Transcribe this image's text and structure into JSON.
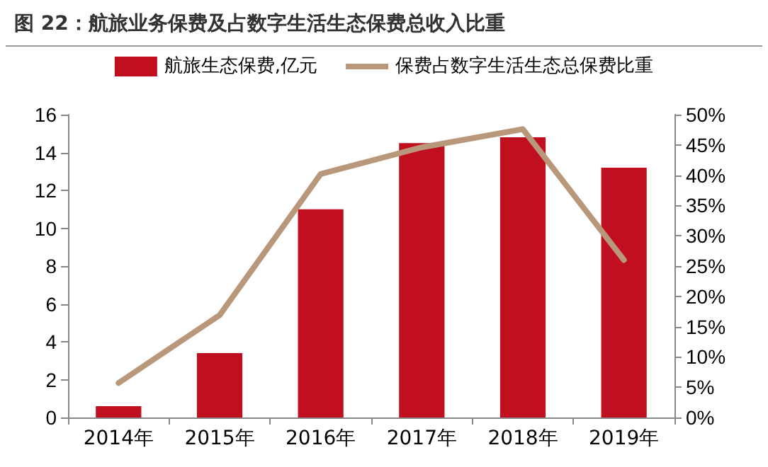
{
  "chart_data": {
    "type": "bar",
    "title": "图 22：航旅业务保费及占数字生活生态保费总收入比重",
    "categories": [
      "2014年",
      "2015年",
      "2016年",
      "2017年",
      "2018年",
      "2019年"
    ],
    "series": [
      {
        "name": "航旅生态保费,亿元",
        "color": "#c00f1e",
        "values": [
          0.6,
          3.4,
          11.0,
          14.5,
          14.8,
          13.2
        ]
      },
      {
        "name": "保费占数字生活生态总保费比重",
        "type": "line",
        "axis": "y2",
        "color": "#b8977a",
        "values": [
          5.7,
          16.9,
          40.2,
          44.6,
          47.6,
          26.0
        ]
      }
    ],
    "ylim": [
      0,
      16
    ],
    "yticks": [
      0,
      2,
      4,
      6,
      8,
      10,
      12,
      14,
      16
    ],
    "y2lim": [
      0,
      50
    ],
    "y2ticks": [
      {
        "value": 0,
        "label": "0%"
      },
      {
        "value": 5,
        "label": "5%"
      },
      {
        "value": 10,
        "label": "10%"
      },
      {
        "value": 15,
        "label": "15%"
      },
      {
        "value": 20,
        "label": "20%"
      },
      {
        "value": 25,
        "label": "25%"
      },
      {
        "value": 30,
        "label": "30%"
      },
      {
        "value": 35,
        "label": "35%"
      },
      {
        "value": 40,
        "label": "40%"
      },
      {
        "value": 45,
        "label": "45%"
      },
      {
        "value": 50,
        "label": "50%"
      }
    ],
    "grid": false,
    "legend": "top",
    "marker": "none",
    "line_style": "solid"
  }
}
